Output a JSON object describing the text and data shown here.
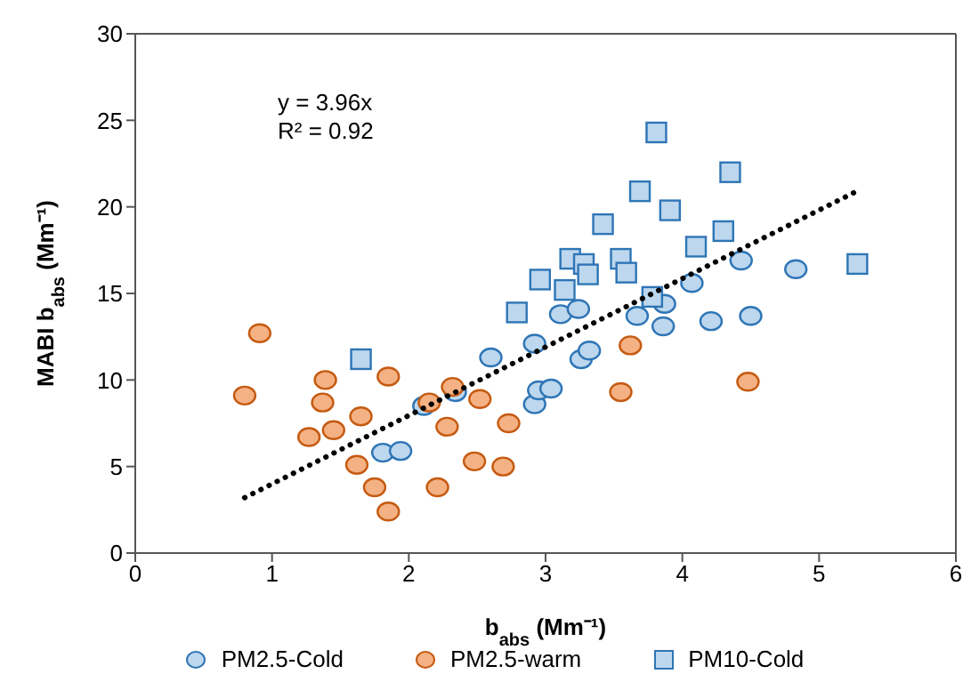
{
  "chart_data": {
    "type": "scatter",
    "xlabel": "b$_{abs}$ (Mm⁻¹)",
    "ylabel": "MABI b$_{abs}$ (Mm⁻¹)",
    "xlim": [
      0,
      6
    ],
    "xticks": [
      0,
      1,
      2,
      3,
      4,
      5,
      6
    ],
    "ylim": [
      0,
      30
    ],
    "yticks": [
      0,
      5,
      10,
      15,
      20,
      25,
      30
    ],
    "legend": "bottom",
    "annotations": [
      "y = 3.96x",
      "R² = 0.92"
    ],
    "series": [
      {
        "name": "PM2.5-Cold",
        "color": "#bdd7ee",
        "marker": "circle",
        "x": [
          1.81,
          1.94,
          2.11,
          2.34,
          2.6,
          2.92,
          2.92,
          2.95,
          3.04,
          3.11,
          3.24,
          3.26,
          3.32,
          3.67,
          3.87,
          3.86,
          4.07,
          4.21,
          4.43,
          4.5,
          4.83
        ],
        "values": [
          5.8,
          5.9,
          8.5,
          9.3,
          11.3,
          12.1,
          8.6,
          9.4,
          9.5,
          13.8,
          14.1,
          11.2,
          11.7,
          13.7,
          14.4,
          13.1,
          15.6,
          13.4,
          16.9,
          13.7,
          16.4
        ]
      },
      {
        "name": "PM2.5-warm",
        "color": "#f4b183",
        "marker": "circle",
        "x": [
          0.91,
          0.8,
          1.39,
          1.37,
          1.85,
          1.65,
          1.45,
          1.27,
          1.62,
          1.75,
          1.85,
          2.15,
          2.32,
          2.52,
          2.28,
          2.73,
          2.48,
          2.69,
          2.21,
          3.62,
          3.55,
          4.48
        ],
        "values": [
          12.7,
          9.1,
          10.0,
          8.7,
          10.2,
          7.9,
          7.1,
          6.7,
          5.1,
          3.8,
          2.4,
          8.7,
          9.6,
          8.9,
          7.3,
          7.5,
          5.3,
          5.0,
          3.8,
          12.0,
          9.3,
          9.9
        ]
      },
      {
        "name": "PM10-Cold",
        "color": "#bdd7ee",
        "marker": "square",
        "x": [
          1.65,
          2.79,
          2.96,
          3.14,
          3.18,
          3.28,
          3.31,
          3.55,
          3.59,
          3.42,
          3.69,
          3.81,
          3.91,
          4.1,
          4.3,
          4.35,
          5.28,
          3.78
        ],
        "values": [
          11.2,
          13.9,
          15.8,
          15.2,
          17.0,
          16.7,
          16.1,
          17.0,
          16.2,
          19.0,
          20.9,
          24.3,
          19.8,
          17.7,
          18.6,
          22.0,
          16.7,
          14.8
        ]
      },
      {
        "type": "line",
        "color": "#000000",
        "marker": "none",
        "line_style": "dotted",
        "x": [
          0.8,
          5.3
        ],
        "values": [
          3.2,
          21.0
        ]
      }
    ]
  }
}
